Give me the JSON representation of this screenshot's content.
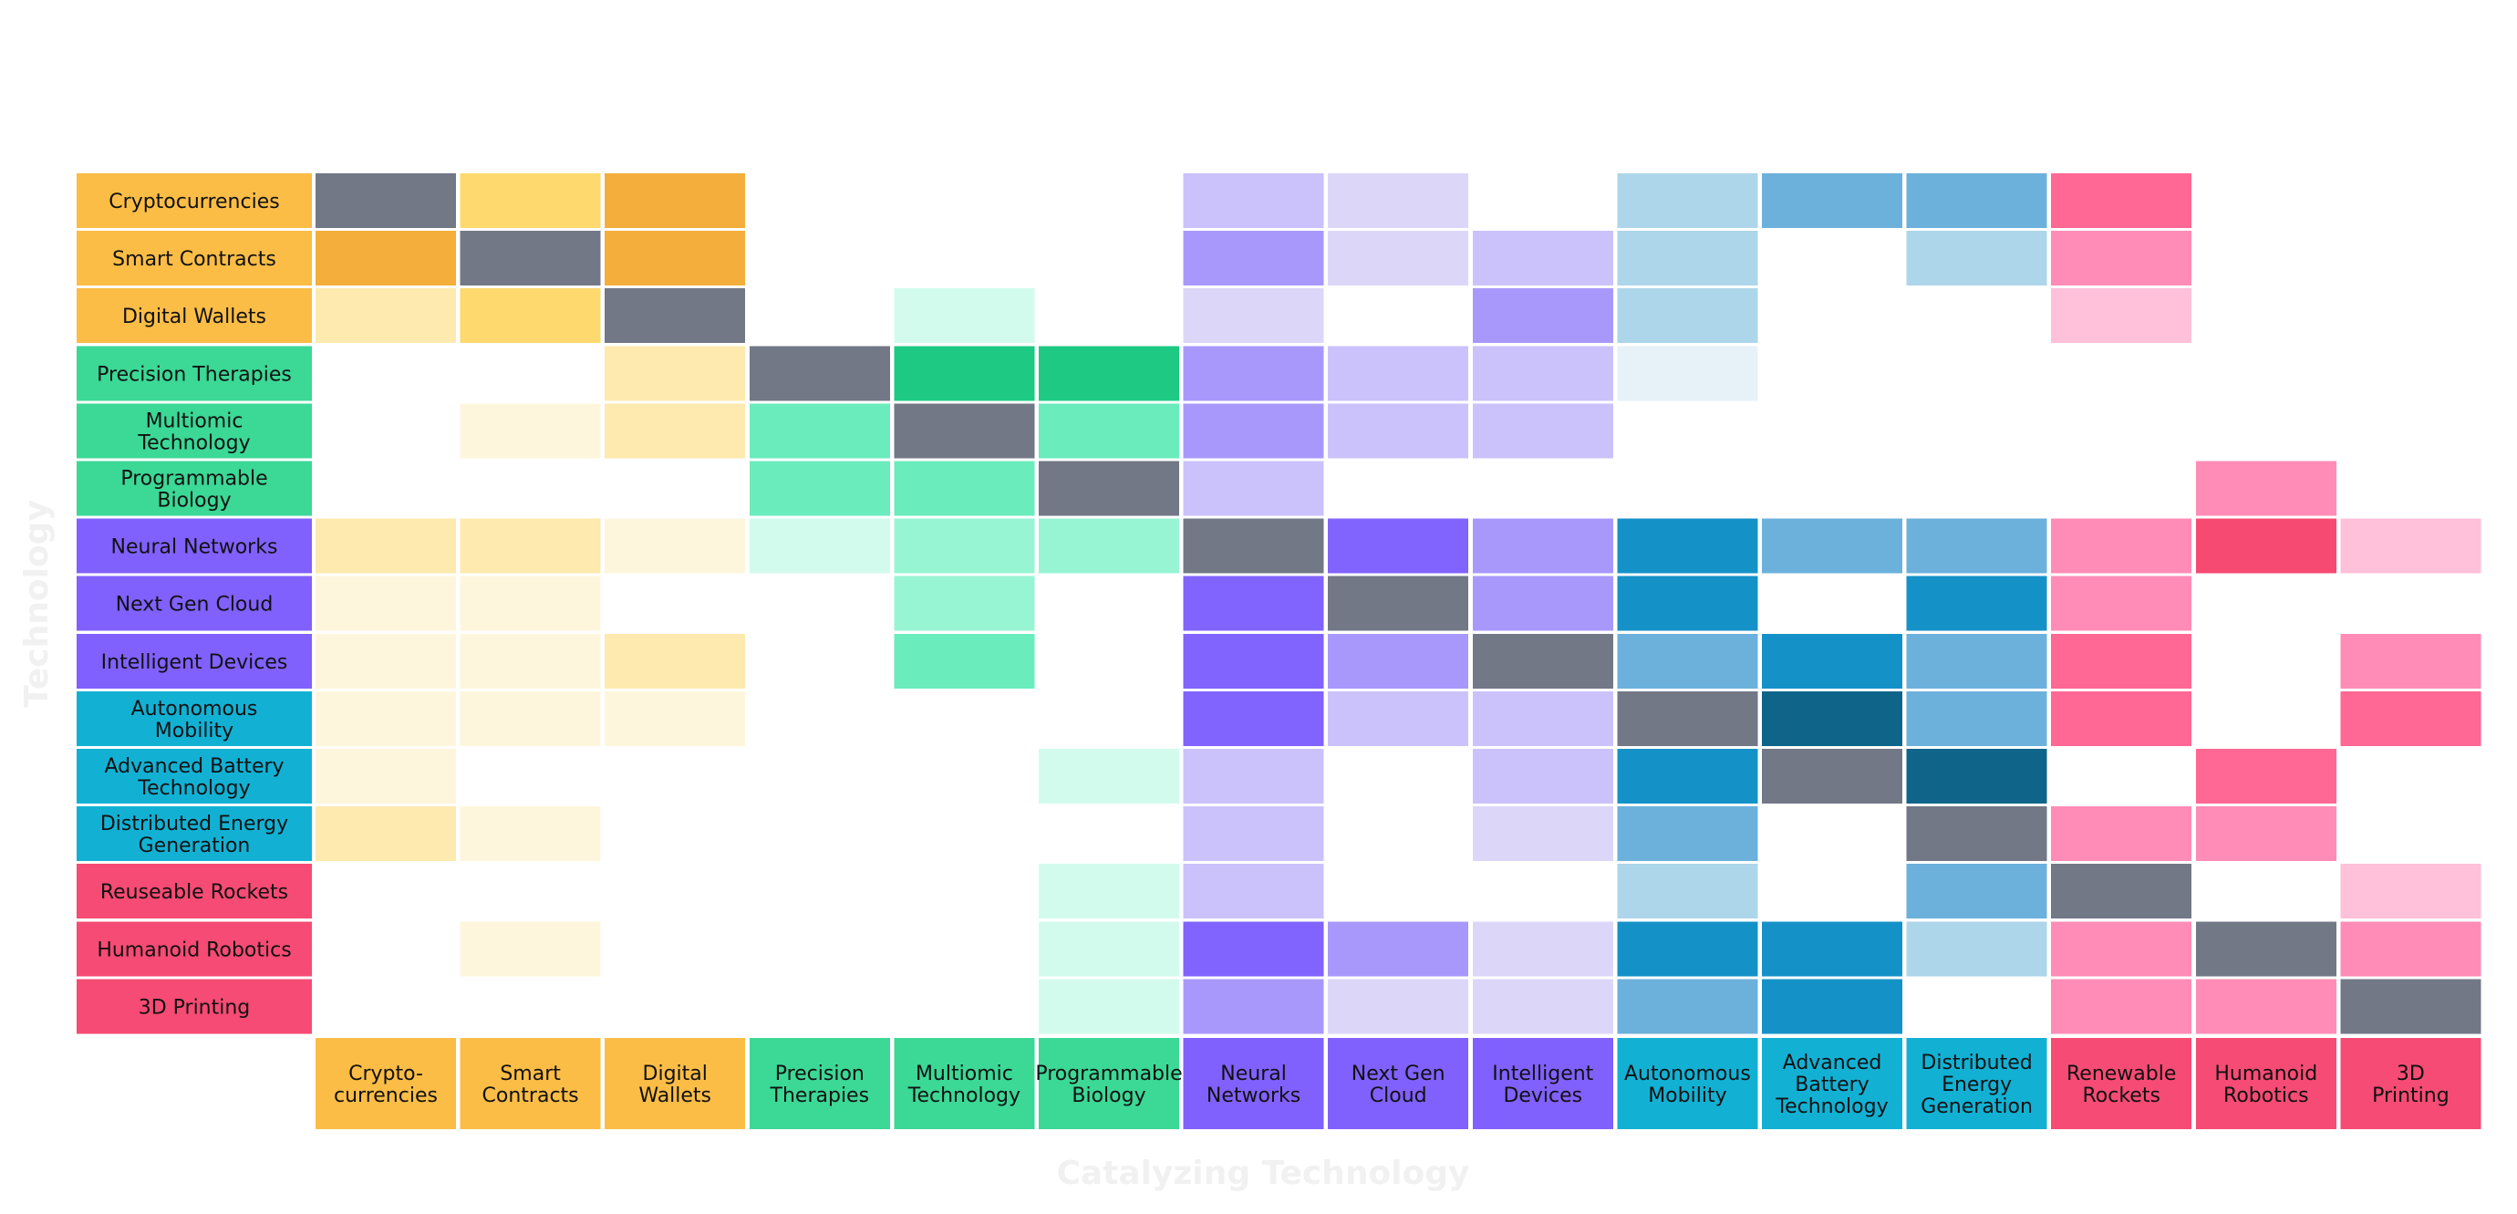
{
  "chart_data": {
    "type": "heatmap",
    "xlabel": "Catalyzing Technology",
    "ylabel": "Technology",
    "grid": false,
    "legend": "none",
    "rows": [
      {
        "label": "Cryptocurrencies",
        "lines": [
          "Cryptocurrencies"
        ],
        "group": "blockchain"
      },
      {
        "label": "Smart Contracts",
        "lines": [
          "Smart Contracts"
        ],
        "group": "blockchain"
      },
      {
        "label": "Digital Wallets",
        "lines": [
          "Digital Wallets"
        ],
        "group": "blockchain"
      },
      {
        "label": "Precision Therapies",
        "lines": [
          "Precision Therapies"
        ],
        "group": "sequencing"
      },
      {
        "label": "Multiomic Technology",
        "lines": [
          "Multiomic",
          "Technology"
        ],
        "group": "sequencing"
      },
      {
        "label": "Programmable Biology",
        "lines": [
          "Programmable",
          "Biology"
        ],
        "group": "sequencing"
      },
      {
        "label": "Neural Networks",
        "lines": [
          "Neural Networks"
        ],
        "group": "ai"
      },
      {
        "label": "Next Gen Cloud",
        "lines": [
          "Next Gen Cloud"
        ],
        "group": "ai"
      },
      {
        "label": "Intelligent Devices",
        "lines": [
          "Intelligent Devices"
        ],
        "group": "ai"
      },
      {
        "label": "Autonomous Mobility",
        "lines": [
          "Autonomous",
          "Mobility"
        ],
        "group": "energy"
      },
      {
        "label": "Advanced Battery Technology",
        "lines": [
          "Advanced Battery",
          "Technology"
        ],
        "group": "energy"
      },
      {
        "label": "Distributed Energy Generation",
        "lines": [
          "Distributed Energy",
          "Generation"
        ],
        "group": "energy"
      },
      {
        "label": "Reuseable Rockets",
        "lines": [
          "Reuseable Rockets"
        ],
        "group": "robotics"
      },
      {
        "label": "Humanoid Robotics",
        "lines": [
          "Humanoid Robotics"
        ],
        "group": "robotics"
      },
      {
        "label": "3D Printing",
        "lines": [
          "3D Printing"
        ],
        "group": "robotics"
      }
    ],
    "columns": [
      {
        "label": "Cryptocurrencies",
        "lines": [
          "Crypto-",
          "currencies"
        ],
        "group": "blockchain"
      },
      {
        "label": "Smart Contracts",
        "lines": [
          "Smart",
          "Contracts"
        ],
        "group": "blockchain"
      },
      {
        "label": "Digital Wallets",
        "lines": [
          "Digital",
          "Wallets"
        ],
        "group": "blockchain"
      },
      {
        "label": "Precision Therapies",
        "lines": [
          "Precision",
          "Therapies"
        ],
        "group": "sequencing"
      },
      {
        "label": "Multiomic Technology",
        "lines": [
          "Multiomic",
          "Technology"
        ],
        "group": "sequencing"
      },
      {
        "label": "Programmable Biology",
        "lines": [
          "Programmable",
          "Biology"
        ],
        "group": "sequencing"
      },
      {
        "label": "Neural Networks",
        "lines": [
          "Neural",
          "Networks"
        ],
        "group": "ai"
      },
      {
        "label": "Next Gen Cloud",
        "lines": [
          "Next Gen",
          "Cloud"
        ],
        "group": "ai"
      },
      {
        "label": "Intelligent Devices",
        "lines": [
          "Intelligent",
          "Devices"
        ],
        "group": "ai"
      },
      {
        "label": "Autonomous Mobility",
        "lines": [
          "Autonomous",
          "Mobility"
        ],
        "group": "energy"
      },
      {
        "label": "Advanced Battery Technology",
        "lines": [
          "Advanced",
          "Battery",
          "Technology"
        ],
        "group": "energy"
      },
      {
        "label": "Distributed Energy Generation",
        "lines": [
          "Distributed",
          "Energy",
          "Generation"
        ],
        "group": "energy"
      },
      {
        "label": "Renewable Rockets",
        "lines": [
          "Renewable",
          "Rockets"
        ],
        "group": "robotics"
      },
      {
        "label": "Humanoid Robotics",
        "lines": [
          "Humanoid",
          "Robotics"
        ],
        "group": "robotics"
      },
      {
        "label": "3D Printing",
        "lines": [
          "3D",
          "Printing"
        ],
        "group": "robotics"
      }
    ],
    "values": [
      [
        -1,
        3,
        4,
        0,
        0,
        0,
        2,
        1,
        0,
        2,
        3,
        3,
        3,
        0,
        0
      ],
      [
        4,
        -1,
        4,
        0,
        0,
        0,
        3,
        1,
        2,
        2,
        0,
        2,
        2,
        0,
        0
      ],
      [
        2,
        3,
        -1,
        0,
        1,
        0,
        1,
        0,
        3,
        2,
        0,
        0,
        1,
        0,
        0
      ],
      [
        0,
        0,
        2,
        -1,
        4,
        4,
        3,
        2,
        2,
        1,
        0,
        0,
        0,
        0,
        0
      ],
      [
        0,
        1,
        2,
        3,
        -1,
        3,
        3,
        2,
        2,
        0,
        0,
        0,
        0,
        0,
        0
      ],
      [
        0,
        0,
        0,
        3,
        3,
        -1,
        2,
        0,
        0,
        0,
        0,
        0,
        0,
        2,
        0
      ],
      [
        2,
        2,
        1,
        1,
        2,
        2,
        -1,
        4,
        3,
        4,
        3,
        3,
        2,
        4,
        1
      ],
      [
        1,
        1,
        0,
        0,
        2,
        0,
        4,
        -1,
        3,
        4,
        0,
        4,
        2,
        0,
        0
      ],
      [
        1,
        1,
        2,
        0,
        3,
        0,
        4,
        3,
        -1,
        3,
        4,
        3,
        3,
        0,
        2
      ],
      [
        1,
        1,
        1,
        0,
        0,
        0,
        4,
        2,
        2,
        -1,
        5,
        3,
        3,
        0,
        3
      ],
      [
        1,
        0,
        0,
        0,
        0,
        1,
        2,
        0,
        2,
        4,
        -1,
        5,
        0,
        3,
        0
      ],
      [
        2,
        1,
        0,
        0,
        0,
        0,
        2,
        0,
        1,
        3,
        0,
        -1,
        2,
        2,
        0
      ],
      [
        0,
        0,
        0,
        0,
        0,
        1,
        2,
        0,
        0,
        2,
        0,
        3,
        -1,
        0,
        1
      ],
      [
        0,
        1,
        0,
        0,
        0,
        1,
        4,
        3,
        1,
        4,
        4,
        2,
        2,
        -1,
        2
      ],
      [
        0,
        0,
        0,
        0,
        0,
        1,
        3,
        1,
        1,
        3,
        4,
        0,
        2,
        2,
        -1
      ]
    ],
    "value_meaning": "0 = no cell, 1-5 = increasing shade intensity, -1 = diagonal (self)"
  },
  "colors": {
    "diagonal": "#737887",
    "background": "#ffffff",
    "axis_title": "#f1f1f1",
    "label_text": "#111111",
    "groups": {
      "blockchain": {
        "label": "#fbbd46",
        "shades": [
          "#fef6dc",
          "#fee9ae",
          "#fed96e",
          "#f3ae3b",
          "#c8711b",
          "#c8711b"
        ]
      },
      "sequencing": {
        "label": "#3bd896",
        "shades": [
          "#d3fbed",
          "#97f5d4",
          "#6aecbc",
          "#1dc983",
          "#009556",
          "#009556"
        ]
      },
      "ai": {
        "label": "#8061fd",
        "shades": [
          "#dcd7f9",
          "#cbc2fb",
          "#a998fc",
          "#8163fd",
          "#4e3ea0",
          "#4e3ea0"
        ]
      },
      "energy": {
        "label": "#12b1d4",
        "shades": [
          "#e7f2f8",
          "#add6eb",
          "#6cb1dc",
          "#1492c8",
          "#0f648a",
          "#0f648a"
        ]
      },
      "robotics": {
        "label": "#f64b74",
        "shades": [
          "#ffc0d9",
          "#ff8cb6",
          "#ff6794",
          "#f64a73",
          "#f64a73",
          "#f64a73"
        ]
      }
    }
  }
}
